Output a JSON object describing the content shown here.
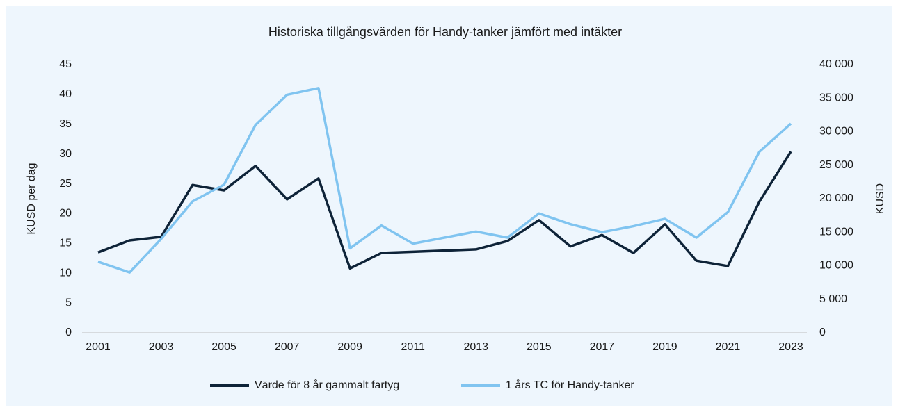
{
  "chart_data": {
    "type": "line",
    "title": "Historiska tillgångsvärden för Handy-tanker jämfört med intäkter",
    "ylabel": "KUSD per dag",
    "y2label": "KUSD",
    "x": [
      2001,
      2002,
      2003,
      2004,
      2005,
      2006,
      2007,
      2008,
      2009,
      2010,
      2011,
      2012,
      2013,
      2014,
      2015,
      2016,
      2017,
      2018,
      2019,
      2020,
      2021,
      2022,
      2023
    ],
    "xlim": [
      2001,
      2023
    ],
    "xticks": [
      2001,
      2003,
      2005,
      2007,
      2009,
      2011,
      2013,
      2015,
      2017,
      2019,
      2021,
      2023
    ],
    "ylim": [
      0,
      45
    ],
    "yticks": [
      0,
      5,
      10,
      15,
      20,
      25,
      30,
      35,
      40,
      45
    ],
    "y2lim": [
      0,
      40000
    ],
    "y2ticks": [
      0,
      {
        "value": 5000,
        "label": "5 000"
      },
      {
        "value": 10000,
        "label": "10 000"
      },
      {
        "value": 15000,
        "label": "15 000"
      },
      {
        "value": 20000,
        "label": "20 000"
      },
      {
        "value": 25000,
        "label": "25 000"
      },
      {
        "value": 30000,
        "label": "30 000"
      },
      {
        "value": 35000,
        "label": "35 000"
      },
      {
        "value": 40000,
        "label": "40 000"
      }
    ],
    "legend": "bottom",
    "series": [
      {
        "name": "Värde för 8 år gammalt fartyg",
        "color": "#0e2338",
        "values": [
          13.5,
          15.5,
          16.1,
          24.8,
          23.9,
          28.0,
          22.4,
          25.9,
          10.8,
          13.4,
          13.6,
          13.8,
          14.0,
          15.4,
          18.9,
          14.5,
          16.4,
          13.4,
          18.2,
          12.1,
          11.2,
          22.0,
          30.4
        ]
      },
      {
        "name": "1 års TC för Handy-tanker",
        "color": "#80c4f0",
        "axis": "y2",
        "values": [
          10600,
          9000,
          14000,
          19600,
          22100,
          31000,
          35500,
          36500,
          12600,
          16000,
          13300,
          14200,
          15100,
          14200,
          17800,
          16200,
          15000,
          15900,
          17000,
          14200,
          18000,
          27000,
          31200
        ]
      }
    ]
  }
}
